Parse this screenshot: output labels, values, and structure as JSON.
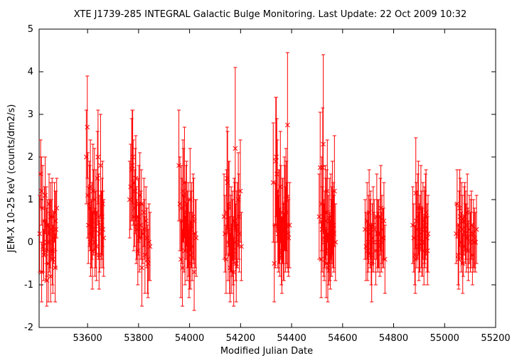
{
  "chart_data": {
    "type": "scatter",
    "title": "XTE J1739-285   INTEGRAL Galactic Bulge Monitoring.  Last Update: 22 Oct 2009 10:32",
    "xlabel": "Modified Julian Date",
    "ylabel": "JEM-X 10-25 keV (counts/dm2/s)",
    "xlim": [
      53410,
      55200
    ],
    "ylim": [
      -2,
      5
    ],
    "xticks": [
      53600,
      53800,
      54000,
      54200,
      54400,
      54600,
      54800,
      55000,
      55200
    ],
    "yticks": [
      -2,
      -1,
      0,
      1,
      2,
      3,
      4,
      5
    ],
    "grid": false,
    "legend": "none",
    "marker": "x",
    "error_bars": true,
    "color": "#ff0000",
    "series": [
      {
        "x": [
          53412,
          53416,
          53420,
          53424,
          53428,
          53431,
          53434,
          53437,
          53440,
          53443,
          53446,
          53449,
          53452,
          53455,
          53458,
          53461,
          53464,
          53467,
          53470,
          53473,
          53476,
          53479,
          53419,
          53426,
          53438,
          53450,
          53462,
          53474,
          53440,
          53455,
          53595,
          53599,
          53603,
          53607,
          53611,
          53615,
          53619,
          53623,
          53627,
          53631,
          53635,
          53639,
          53643,
          53647,
          53651,
          53655,
          53659,
          53663,
          53601,
          53617,
          53629,
          53641,
          53653,
          53609,
          53621,
          53645,
          53657,
          53612,
          53633,
          53660,
          53765,
          53769,
          53773,
          53777,
          53781,
          53785,
          53789,
          53793,
          53797,
          53801,
          53805,
          53809,
          53813,
          53817,
          53821,
          53825,
          53829,
          53833,
          53837,
          53841,
          53845,
          53775,
          53787,
          53799,
          53811,
          53823,
          53835,
          53779,
          53791,
          53803,
          53958,
          53962,
          53966,
          53970,
          53974,
          53978,
          53982,
          53986,
          53990,
          53994,
          53998,
          54002,
          54006,
          54010,
          54014,
          54018,
          54022,
          54026,
          53968,
          53980,
          53992,
          54004,
          54016,
          53972,
          53984,
          53996,
          54008,
          53976,
          53988,
          54000,
          54135,
          54139,
          54143,
          54147,
          54151,
          54155,
          54159,
          54163,
          54167,
          54171,
          54175,
          54179,
          54183,
          54187,
          54191,
          54195,
          54199,
          54203,
          54145,
          54157,
          54169,
          54181,
          54193,
          54149,
          54161,
          54173,
          54185,
          54153,
          54165,
          54177,
          54328,
          54332,
          54336,
          54340,
          54344,
          54348,
          54352,
          54356,
          54360,
          54364,
          54368,
          54372,
          54376,
          54380,
          54384,
          54388,
          54392,
          54338,
          54350,
          54362,
          54374,
          54386,
          54342,
          54354,
          54366,
          54378,
          54346,
          54358,
          54370,
          54382,
          54508,
          54512,
          54516,
          54520,
          54524,
          54528,
          54532,
          54536,
          54540,
          54544,
          54548,
          54552,
          54556,
          54560,
          54564,
          54568,
          54572,
          54518,
          54530,
          54542,
          54554,
          54566,
          54522,
          54534,
          54546,
          54558,
          54526,
          54538,
          54550,
          54562,
          54688,
          54692,
          54696,
          54700,
          54704,
          54708,
          54712,
          54716,
          54720,
          54724,
          54730,
          54734,
          54738,
          54742,
          54746,
          54750,
          54754,
          54758,
          54762,
          54766,
          54698,
          54710,
          54722,
          54736,
          54748,
          54760,
          54702,
          54714,
          54740,
          54752,
          54875,
          54879,
          54883,
          54887,
          54891,
          54895,
          54899,
          54903,
          54907,
          54911,
          54915,
          54919,
          54923,
          54927,
          54931,
          54935,
          54885,
          54897,
          54909,
          54921,
          54933,
          54889,
          54901,
          54913,
          54925,
          55045,
          55049,
          55053,
          55057,
          55061,
          55065,
          55069,
          55073,
          55077,
          55081,
          55085,
          55089,
          55093,
          55097,
          55101,
          55105,
          55109,
          55113,
          55117,
          55121,
          55125,
          55055,
          55067,
          55079,
          55091,
          55103,
          55115,
          55059,
          55071,
          55083
        ],
        "y": [
          0.2,
          1.6,
          -0.7,
          0.8,
          -0.3,
          0.5,
          1.1,
          -0.2,
          0.0,
          0.4,
          -0.5,
          0.9,
          0.2,
          -0.8,
          0.3,
          0.6,
          -0.4,
          0.1,
          0.7,
          -0.6,
          0.3,
          0.8,
          1.2,
          -0.1,
          0.4,
          0.0,
          -0.2,
          0.5,
          -0.9,
          0.6,
          2.0,
          2.7,
          0.4,
          0.9,
          1.3,
          0.2,
          -0.2,
          0.7,
          1.0,
          0.3,
          -0.1,
          1.5,
          0.6,
          0.2,
          1.8,
          0.4,
          0.9,
          0.1,
          1.1,
          0.5,
          0.0,
          2.0,
          0.3,
          0.8,
          1.2,
          -0.3,
          0.6,
          0.0,
          0.7,
          0.3,
          1.0,
          1.3,
          1.7,
          2.0,
          0.6,
          0.8,
          1.5,
          0.3,
          -0.2,
          0.9,
          1.1,
          0.4,
          -0.6,
          0.2,
          0.7,
          -0.3,
          0.5,
          0.1,
          -0.5,
          0.0,
          -0.1,
          1.8,
          1.2,
          0.6,
          0.9,
          0.3,
          -0.4,
          1.4,
          0.4,
          0.1,
          1.8,
          0.9,
          -0.4,
          0.5,
          1.2,
          0.2,
          -0.2,
          0.7,
          0.0,
          0.4,
          -0.5,
          1.0,
          0.3,
          -0.1,
          0.6,
          -0.7,
          0.2,
          0.1,
          0.8,
          1.4,
          0.3,
          -0.3,
          0.5,
          -0.6,
          0.6,
          0.1,
          0.4,
          1.1,
          0.9,
          -0.2,
          0.6,
          0.2,
          -0.4,
          1.5,
          0.0,
          0.8,
          -0.6,
          0.3,
          0.1,
          -0.2,
          0.5,
          2.2,
          -0.5,
          0.4,
          1.0,
          0.2,
          1.2,
          -0.1,
          0.7,
          -0.3,
          0.4,
          0.0,
          0.6,
          1.4,
          0.2,
          -0.7,
          0.3,
          0.9,
          -0.4,
          0.5,
          1.4,
          -0.5,
          0.4,
          2.0,
          1.2,
          0.2,
          0.6,
          1.3,
          -0.2,
          0.5,
          0.0,
          0.9,
          0.3,
          0.7,
          2.75,
          0.1,
          0.4,
          1.9,
          0.6,
          -0.3,
          0.8,
          0.2,
          1.6,
          0.0,
          0.5,
          1.0,
          0.3,
          0.7,
          -0.1,
          0.4,
          0.6,
          1.75,
          -0.4,
          0.3,
          2.3,
          0.0,
          0.7,
          -0.5,
          1.2,
          0.2,
          0.5,
          -0.3,
          0.1,
          0.8,
          0.4,
          1.2,
          0.0,
          0.9,
          0.3,
          -0.6,
          0.6,
          0.2,
          1.75,
          0.5,
          -0.2,
          0.4,
          0.1,
          0.7,
          -0.1,
          0.3,
          0.3,
          -0.1,
          0.5,
          0.0,
          0.7,
          0.2,
          -0.3,
          0.1,
          0.4,
          0.3,
          -0.2,
          0.6,
          0.0,
          0.2,
          -0.1,
          0.8,
          0.3,
          0.1,
          0.5,
          -0.4,
          -0.2,
          0.4,
          0.0,
          0.2,
          0.6,
          0.1,
          0.3,
          -0.5,
          0.2,
          0.0,
          0.4,
          0.1,
          -0.3,
          1.15,
          0.3,
          0.6,
          -0.1,
          0.2,
          0.8,
          0.0,
          0.5,
          -0.2,
          0.3,
          0.7,
          0.1,
          0.2,
          -0.4,
          0.8,
          0.3,
          0.4,
          -0.2,
          0.5,
          0.1,
          0.0,
          0.6,
          0.2,
          0.9,
          -0.3,
          0.4,
          0.6,
          0.0,
          0.3,
          -0.1,
          0.5,
          0.2,
          0.1,
          0.7,
          -0.2,
          0.3,
          0.0,
          0.4,
          -0.3,
          0.2,
          0.1,
          0.0,
          0.3,
          -0.4,
          0.5,
          0.6,
          0.1,
          0.2,
          0.0,
          0.8,
          -0.5,
          0.4
        ],
        "err": [
          0.9,
          0.8,
          0.7,
          1.0,
          0.6,
          0.8,
          0.9,
          0.7,
          0.8,
          0.6,
          0.9,
          0.7,
          0.8,
          0.6,
          0.7,
          0.9,
          0.8,
          0.6,
          0.7,
          0.8,
          0.9,
          0.7,
          0.8,
          0.6,
          0.9,
          0.7,
          0.8,
          0.7,
          0.6,
          0.8,
          1.1,
          1.2,
          0.9,
          1.0,
          1.1,
          0.8,
          0.9,
          1.0,
          1.2,
          0.9,
          0.8,
          1.1,
          1.0,
          0.9,
          1.2,
          0.8,
          1.0,
          0.9,
          1.0,
          0.9,
          0.8,
          1.1,
          0.9,
          1.0,
          1.1,
          0.8,
          0.9,
          0.8,
          1.0,
          0.9,
          0.9,
          1.0,
          1.2,
          1.1,
          0.8,
          0.9,
          1.0,
          0.7,
          0.8,
          0.9,
          1.0,
          0.8,
          0.9,
          0.7,
          0.8,
          0.9,
          0.8,
          0.7,
          0.8,
          0.9,
          0.8,
          1.3,
          1.0,
          0.9,
          0.8,
          0.7,
          0.8,
          1.0,
          0.9,
          0.8,
          1.3,
          1.1,
          0.9,
          1.0,
          1.2,
          0.9,
          0.8,
          1.1,
          0.9,
          1.0,
          0.8,
          1.2,
          0.9,
          0.8,
          1.0,
          0.9,
          0.8,
          0.9,
          1.0,
          1.3,
          0.9,
          0.8,
          1.0,
          0.9,
          0.8,
          0.9,
          1.0,
          1.1,
          1.0,
          0.9,
          1.0,
          0.9,
          0.8,
          1.2,
          0.9,
          1.1,
          0.8,
          1.0,
          0.9,
          0.8,
          1.0,
          1.9,
          0.9,
          1.0,
          1.1,
          0.9,
          1.2,
          0.8,
          1.0,
          0.9,
          0.8,
          0.9,
          1.0,
          1.2,
          0.9,
          0.8,
          0.9,
          1.0,
          0.8,
          0.9,
          1.4,
          0.9,
          1.0,
          1.4,
          1.2,
          0.9,
          1.1,
          1.3,
          0.8,
          1.0,
          0.9,
          1.1,
          1.0,
          1.2,
          1.7,
          0.9,
          1.0,
          1.5,
          1.1,
          0.9,
          1.0,
          0.9,
          1.3,
          0.8,
          1.0,
          1.2,
          0.9,
          1.1,
          0.8,
          1.0,
          1.0,
          1.3,
          0.9,
          1.0,
          2.1,
          0.9,
          1.1,
          0.8,
          1.2,
          0.9,
          1.0,
          0.8,
          0.9,
          1.1,
          1.0,
          1.3,
          0.9,
          1.1,
          0.9,
          0.8,
          1.0,
          0.9,
          1.4,
          1.0,
          0.8,
          0.9,
          0.9,
          1.0,
          0.8,
          0.9,
          0.7,
          0.8,
          0.9,
          0.7,
          1.0,
          0.8,
          0.7,
          0.8,
          0.9,
          0.7,
          0.8,
          1.0,
          0.7,
          0.8,
          0.7,
          1.0,
          0.8,
          0.7,
          0.9,
          0.8,
          0.7,
          0.8,
          0.7,
          0.8,
          0.9,
          0.7,
          0.8,
          0.9,
          0.8,
          0.7,
          0.9,
          0.8,
          0.7,
          1.3,
          0.9,
          1.0,
          0.8,
          0.9,
          1.0,
          0.8,
          0.9,
          0.8,
          0.9,
          1.0,
          0.8,
          0.9,
          0.8,
          1.1,
          0.9,
          0.9,
          0.8,
          0.9,
          0.8,
          0.8,
          1.0,
          0.7,
          0.8,
          0.7,
          0.8,
          0.9,
          0.7,
          0.8,
          0.7,
          0.8,
          0.7,
          0.8,
          0.9,
          0.7,
          0.8,
          0.7,
          0.8,
          0.7,
          0.8,
          0.7,
          0.7,
          0.8,
          0.7,
          0.9,
          0.8,
          0.7,
          0.8,
          0.7,
          0.9,
          0.7,
          0.8
        ]
      }
    ]
  }
}
